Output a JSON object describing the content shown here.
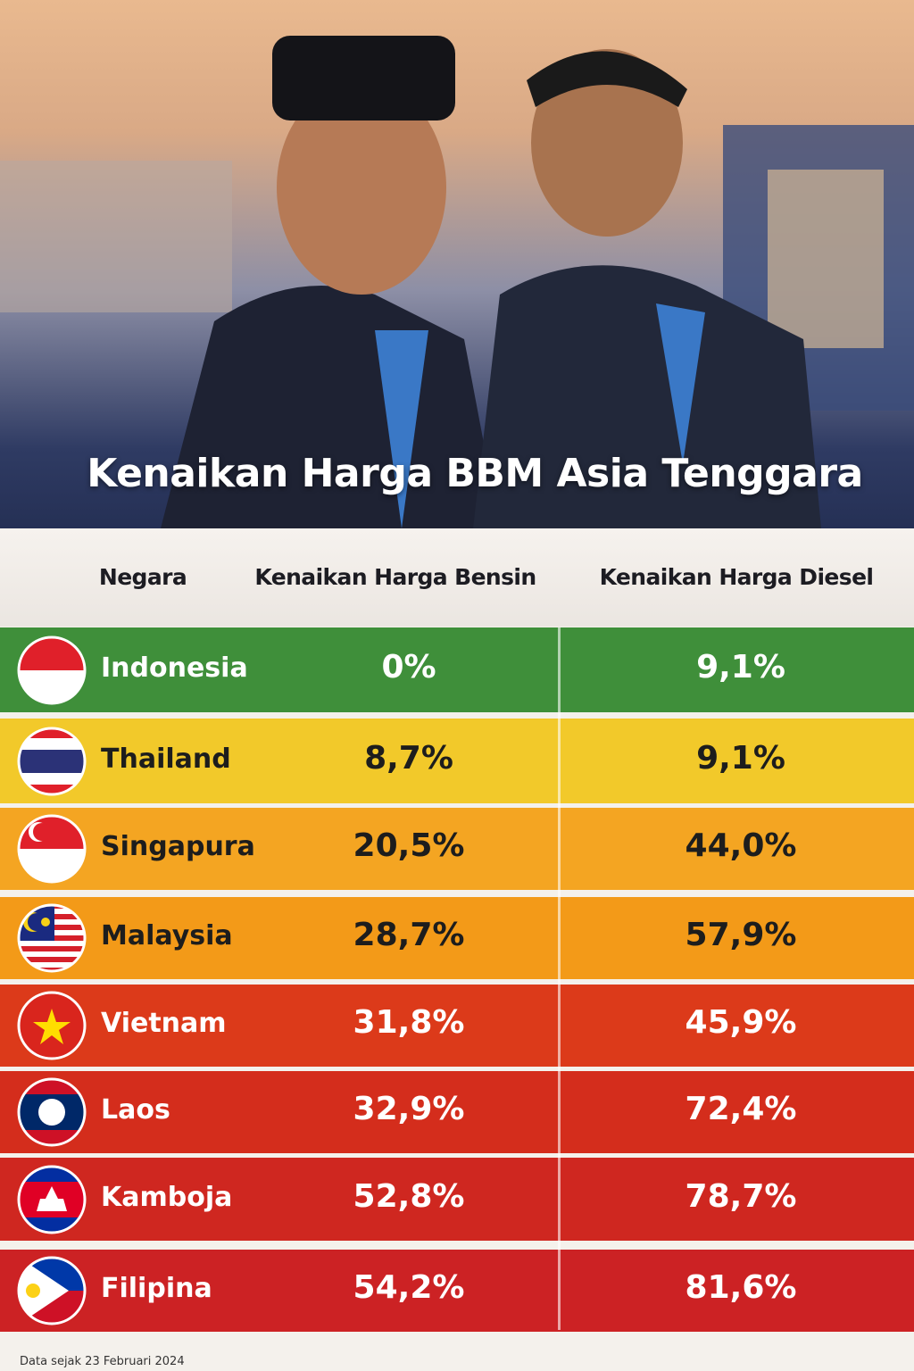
{
  "header": {
    "title": "Kenaikan Harga BBM Asia Tenggara"
  },
  "table": {
    "columns": [
      "Negara",
      "Kenaikan Harga Bensin",
      "Kenaikan Harga Diesel"
    ],
    "rows": [
      [
        "Indonesia",
        "0%",
        "9,1%"
      ],
      [
        "Thailand",
        "8,7%",
        "9,1%"
      ],
      [
        "Singapura",
        "20,5%",
        "44,0%"
      ],
      [
        "Malaysia",
        "28,7%",
        "57,9%"
      ],
      [
        "Vietnam",
        "31,8%",
        "45,9%"
      ],
      [
        "Laos",
        "32,9%",
        "72,4%"
      ],
      [
        "Kamboja",
        "52,8%",
        "78,7%"
      ],
      [
        "Filipina",
        "54,2%",
        "81,6%"
      ]
    ]
  },
  "footer": {
    "note": "Data sejak 23 Februari 2024"
  }
}
